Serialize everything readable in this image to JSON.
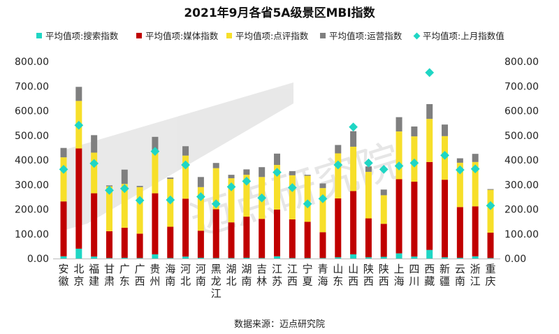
{
  "chart_data": {
    "type": "bar",
    "stacked": true,
    "title": "2021年9月各省5A级景区MBI指数",
    "source": "数据来源：迈点研究院",
    "watermark": "迈点研究院",
    "categories": [
      "安徽",
      "北京",
      "福建",
      "甘肃",
      "广东",
      "广西",
      "贵州",
      "海南",
      "河北",
      "河南",
      "黑龙江",
      "湖北",
      "湖南",
      "吉林",
      "江苏",
      "江西",
      "宁夏",
      "青海",
      "山东",
      "山西",
      "陕西",
      "陕西",
      "上海",
      "四川",
      "西藏",
      "新疆",
      "云南",
      "浙江",
      "重庆"
    ],
    "series": [
      {
        "name": "平均值项:搜索指数",
        "kind": "bar",
        "color": "#1fd6c4",
        "values": [
          9,
          40,
          8,
          2,
          3,
          2,
          17,
          2,
          8,
          3,
          2,
          2,
          3,
          2,
          9,
          2,
          2,
          2,
          5,
          17,
          5,
          7,
          21,
          8,
          35,
          5,
          3,
          9,
          2
        ]
      },
      {
        "name": "平均值项:媒体指数",
        "kind": "bar",
        "color": "#c00000",
        "values": [
          223,
          407,
          257,
          109,
          122,
          99,
          248,
          127,
          235,
          110,
          198,
          145,
          167,
          159,
          190,
          157,
          147,
          105,
          239,
          257,
          158,
          134,
          301,
          304,
          357,
          315,
          206,
          203,
          103
        ]
      },
      {
        "name": "平均值项:点评指数",
        "kind": "bar",
        "color": "#f7df2a",
        "values": [
          179,
          193,
          165,
          182,
          178,
          189,
          170,
          194,
          175,
          177,
          167,
          179,
          170,
          170,
          181,
          179,
          187,
          179,
          183,
          180,
          189,
          116,
          194,
          184,
          175,
          177,
          180,
          180,
          174
        ]
      },
      {
        "name": "平均值项:运营指数",
        "kind": "bar",
        "color": "#7f7f7f",
        "values": [
          38,
          57,
          71,
          4,
          58,
          5,
          59,
          6,
          38,
          41,
          21,
          14,
          22,
          40,
          46,
          17,
          4,
          19,
          34,
          63,
          22,
          23,
          58,
          40,
          60,
          47,
          18,
          33,
          3
        ]
      },
      {
        "name": "平均值项:上月指数值",
        "kind": "marker",
        "color": "#1fd6c4",
        "values": [
          362,
          541,
          386,
          277,
          284,
          236,
          435,
          238,
          380,
          251,
          222,
          291,
          314,
          246,
          350,
          288,
          222,
          243,
          380,
          534,
          388,
          362,
          376,
          388,
          755,
          419,
          360,
          364,
          215
        ]
      }
    ],
    "ylim": [
      0,
      800
    ],
    "yticks": [
      "0.00",
      "100.00",
      "200.00",
      "300.00",
      "400.00",
      "500.00",
      "600.00",
      "700.00",
      "800.00"
    ],
    "secondary_yticks": [
      "0.00",
      "100.00",
      "200.00",
      "300.00",
      "400.00",
      "500.00",
      "600.00",
      "700.00",
      "800.00"
    ],
    "grid": false,
    "legend_position": "top"
  }
}
